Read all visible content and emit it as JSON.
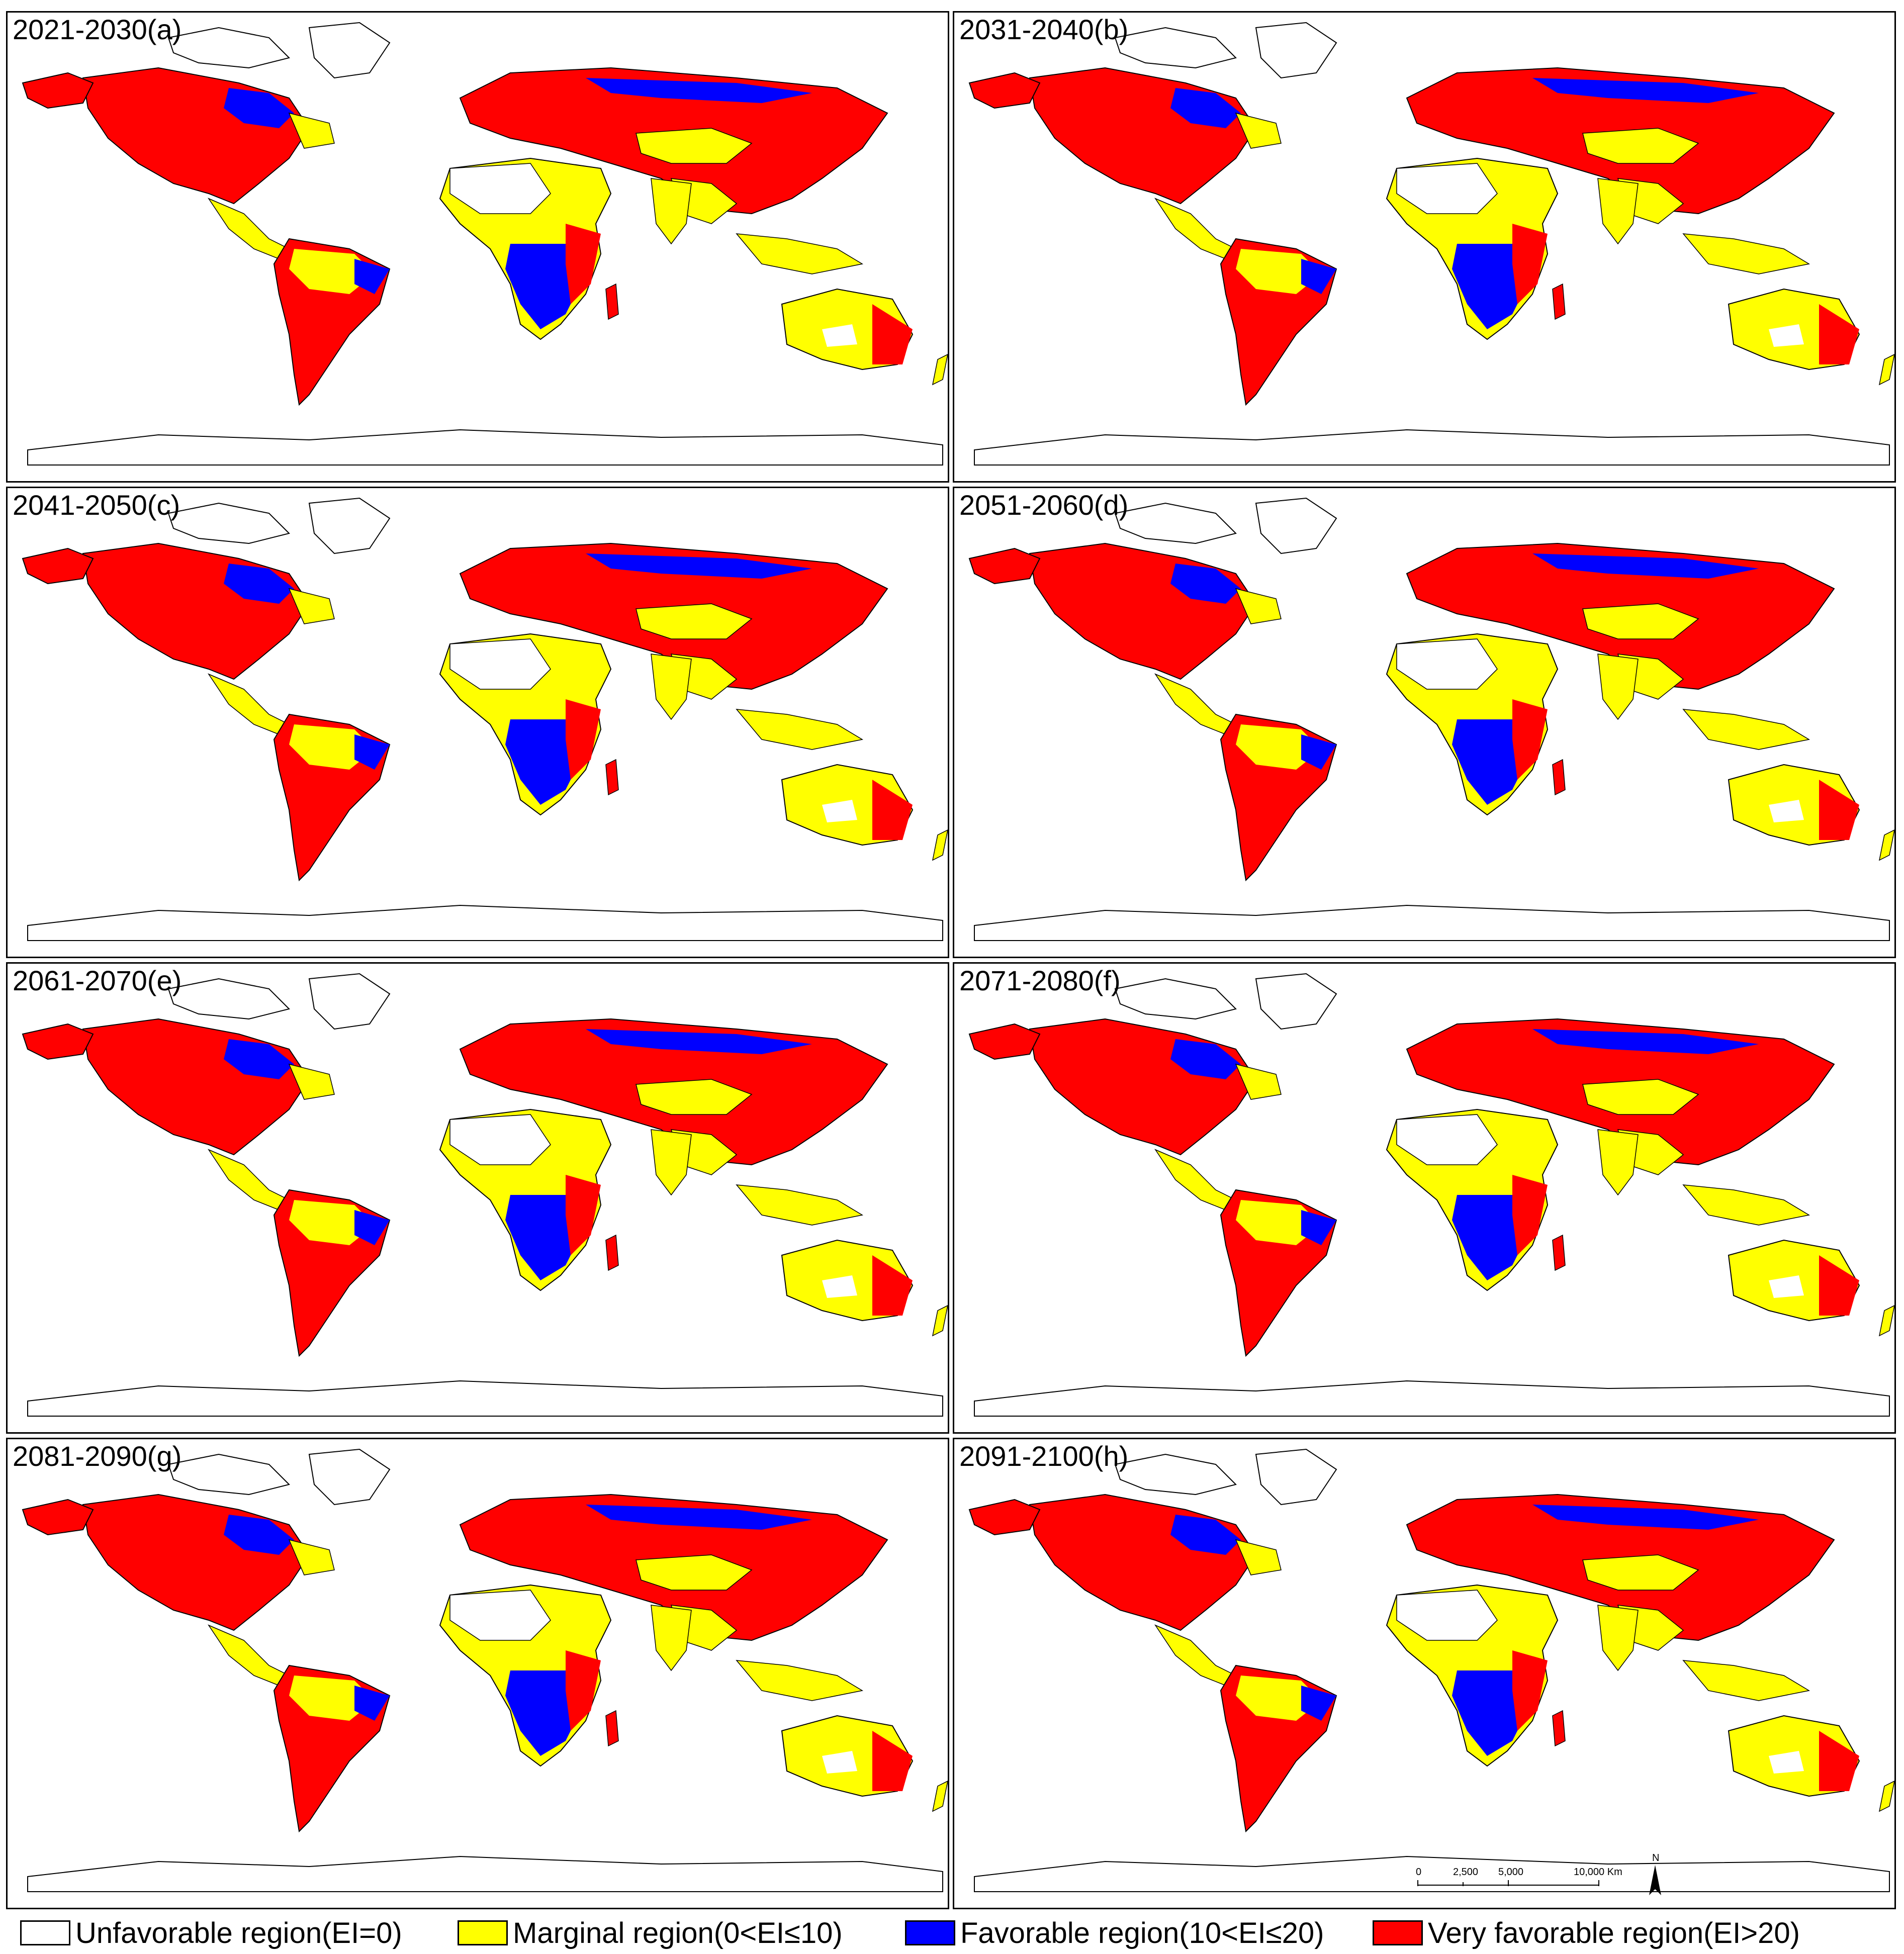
{
  "panels": [
    {
      "label": "2021-2030(a)"
    },
    {
      "label": "2031-2040(b)"
    },
    {
      "label": "2041-2050(c)"
    },
    {
      "label": "2051-2060(d)"
    },
    {
      "label": "2061-2070(e)"
    },
    {
      "label": "2071-2080(f)"
    },
    {
      "label": "2081-2090(g)"
    },
    {
      "label": "2091-2100(h)"
    }
  ],
  "legend": [
    {
      "label": "Unfavorable region(EI=0)",
      "color": "#ffffff"
    },
    {
      "label": "Marginal region(0<EI≤10)",
      "color": "#ffff00"
    },
    {
      "label": "Favorable region(10<EI≤20)",
      "color": "#0000ff"
    },
    {
      "label": "Very favorable region(EI>20)",
      "color": "#ff0000"
    }
  ],
  "scalebar": {
    "ticks": [
      "0",
      "2,500",
      "5,000",
      "10,000 Km"
    ],
    "north": "N"
  }
}
